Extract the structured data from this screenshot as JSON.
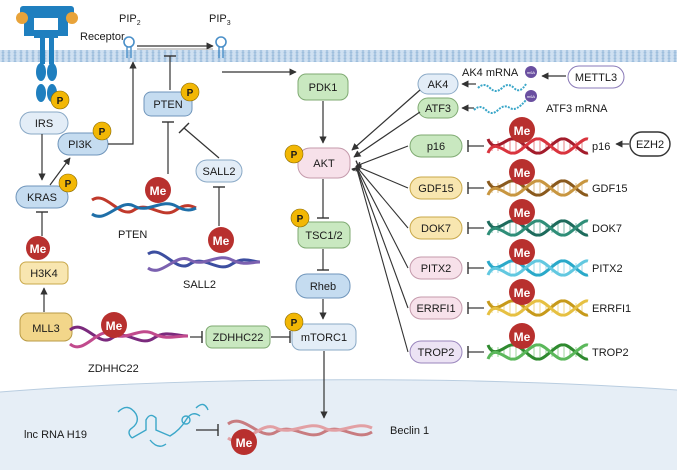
{
  "labels": {
    "receptor": "Receptor",
    "pip2": "PIP",
    "pip2_sub": "2",
    "pip3": "PIP",
    "pip3_sub": "3",
    "irs": "IRS",
    "pi3k": "PI3K",
    "kras": "KRAS",
    "h3k4": "H3K4",
    "mll3": "MLL3",
    "pten_node": "PTEN",
    "pten_gene": "PTEN",
    "sall2_node": "SALL2",
    "sall2_gene": "SALL2",
    "pdk1": "PDK1",
    "akt": "AKT",
    "tsc": "TSC1/2",
    "rheb": "Rheb",
    "mtorc1": "mTORC1",
    "zdhhc22_node": "ZDHHC22",
    "zdhhc22_gene": "ZDHHC22",
    "ak4": "AK4",
    "atf3": "ATF3",
    "ak4_mrna": "AK4 mRNA",
    "atf3_mrna": "ATF3 mRNA",
    "mettl3": "METTL3",
    "ezh2": "EZH2",
    "lnc": "lnc RNA H19",
    "beclin": "Beclin 1",
    "me": "Me",
    "p": "P",
    "m6a": "m6A",
    "genes": [
      {
        "node": "p16",
        "gene": "p16"
      },
      {
        "node": "GDF15",
        "gene": "GDF15"
      },
      {
        "node": "DOK7",
        "gene": "DOK7"
      },
      {
        "node": "PITX2",
        "gene": "PITX2"
      },
      {
        "node": "ERRFI1",
        "gene": "ERRFI1"
      },
      {
        "node": "TROP2",
        "gene": "TROP2"
      }
    ]
  },
  "colors": {
    "membrane": "#c9ddf0",
    "nucleus": "#e6eef6",
    "me_ball": "#b8302e",
    "p_ball": "#f2b705",
    "receptor": "#1f7fbf",
    "receptor_ball": "#e8a33a",
    "pip": "#4a8fc8",
    "green_node": "#c9e8c0",
    "pink_node": "#f7e1ea",
    "blue_node": "#c5dcf0",
    "yellow_node": "#f8e6b0",
    "mll3_node": "#f2d68a",
    "dna": {
      "pten": [
        "#c0392b",
        "#1f6fa8"
      ],
      "sall2": [
        "#3c4ea0",
        "#7b61b0"
      ],
      "zdhhc22": [
        "#7b2a7d",
        "#c14a8d"
      ],
      "p16": [
        "#a31c2b",
        "#d9343e"
      ],
      "gdf15": [
        "#8a5a1d",
        "#c89640"
      ],
      "dok7": [
        "#1d6b5c",
        "#2f8e78"
      ],
      "pitx2": [
        "#2aa9c9",
        "#62c8e0"
      ],
      "errfi1": [
        "#c79a1a",
        "#e6c042"
      ],
      "trop2": [
        "#2f8a2f",
        "#5bb85b"
      ],
      "beclin": [
        "#c87c80",
        "#e2a0a4"
      ]
    }
  }
}
